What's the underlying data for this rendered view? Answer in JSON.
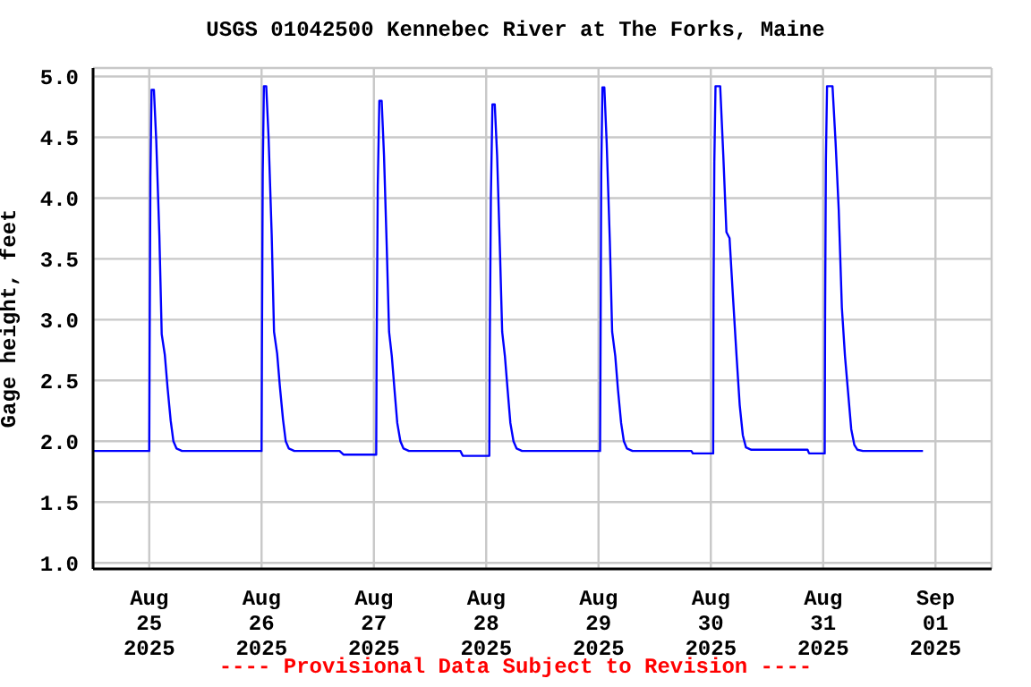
{
  "chart_data": {
    "type": "line",
    "title": "USGS 01042500 Kennebec River at The Forks, Maine",
    "ylabel": "Gage height, feet",
    "annotations": [
      "---- Provisional Data Subject to Revision ----"
    ],
    "color": "#0000ff",
    "grid": true,
    "x": [
      "2025-08-24T12:00",
      "2025-08-25T00:00",
      "2025-08-25T00:05",
      "2025-08-25T00:15",
      "2025-08-25T00:30",
      "2025-08-25T01:00",
      "2025-08-25T01:30",
      "2025-08-25T02:10",
      "2025-08-25T02:40",
      "2025-08-25T03:20",
      "2025-08-25T03:55",
      "2025-08-25T04:35",
      "2025-08-25T05:10",
      "2025-08-25T05:50",
      "2025-08-25T07:00",
      "2025-08-26T00:00",
      "2025-08-26T00:05",
      "2025-08-26T00:15",
      "2025-08-26T00:30",
      "2025-08-26T01:00",
      "2025-08-26T01:30",
      "2025-08-26T02:10",
      "2025-08-26T02:40",
      "2025-08-26T03:20",
      "2025-08-26T03:55",
      "2025-08-26T04:35",
      "2025-08-26T05:10",
      "2025-08-26T05:50",
      "2025-08-26T07:00",
      "2025-08-26T16:40",
      "2025-08-26T17:30",
      "2025-08-27T00:30",
      "2025-08-27T00:35",
      "2025-08-27T00:50",
      "2025-08-27T01:10",
      "2025-08-27T01:40",
      "2025-08-27T02:10",
      "2025-08-27T02:45",
      "2025-08-27T03:15",
      "2025-08-27T03:50",
      "2025-08-27T04:25",
      "2025-08-27T05:00",
      "2025-08-27T05:40",
      "2025-08-27T06:20",
      "2025-08-27T07:30",
      "2025-08-27T18:30",
      "2025-08-27T19:00",
      "2025-08-27T23:50",
      "2025-08-28T00:40",
      "2025-08-28T00:45",
      "2025-08-28T01:00",
      "2025-08-28T01:20",
      "2025-08-28T01:50",
      "2025-08-28T02:20",
      "2025-08-28T02:55",
      "2025-08-28T03:25",
      "2025-08-28T04:00",
      "2025-08-28T04:35",
      "2025-08-28T05:10",
      "2025-08-28T05:50",
      "2025-08-28T06:30",
      "2025-08-28T07:40",
      "2025-08-29T00:20",
      "2025-08-29T00:25",
      "2025-08-29T00:35",
      "2025-08-29T00:50",
      "2025-08-29T01:15",
      "2025-08-29T01:45",
      "2025-08-29T02:25",
      "2025-08-29T02:55",
      "2025-08-29T03:35",
      "2025-08-29T04:10",
      "2025-08-29T04:50",
      "2025-08-29T05:25",
      "2025-08-29T06:05",
      "2025-08-29T07:15",
      "2025-08-29T19:50",
      "2025-08-29T20:10",
      "2025-08-30T00:30",
      "2025-08-30T00:35",
      "2025-08-30T00:45",
      "2025-08-30T01:00",
      "2025-08-30T02:00",
      "2025-08-30T02:40",
      "2025-08-30T03:20",
      "2025-08-30T04:00",
      "2025-08-30T04:40",
      "2025-08-30T05:30",
      "2025-08-30T06:10",
      "2025-08-30T06:50",
      "2025-08-30T07:30",
      "2025-08-30T08:40",
      "2025-08-30T20:40",
      "2025-08-30T21:00",
      "2025-08-31T00:20",
      "2025-08-31T00:25",
      "2025-08-31T00:35",
      "2025-08-31T00:50",
      "2025-08-31T02:00",
      "2025-08-31T02:40",
      "2025-08-31T03:20",
      "2025-08-31T04:00",
      "2025-08-31T04:40",
      "2025-08-31T05:20",
      "2025-08-31T06:00",
      "2025-08-31T06:40",
      "2025-08-31T07:20",
      "2025-08-31T08:30",
      "2025-08-31T21:20"
    ],
    "values": [
      1.92,
      1.92,
      2.76,
      4.17,
      4.89,
      4.89,
      4.47,
      3.69,
      2.88,
      2.71,
      2.44,
      2.17,
      2.0,
      1.94,
      1.92,
      1.92,
      2.76,
      4.2,
      4.92,
      4.92,
      4.5,
      3.7,
      2.9,
      2.72,
      2.45,
      2.18,
      2.0,
      1.94,
      1.92,
      1.92,
      1.89,
      1.89,
      2.7,
      4.1,
      4.8,
      4.8,
      4.35,
      3.6,
      2.9,
      2.7,
      2.42,
      2.15,
      2.0,
      1.94,
      1.92,
      1.92,
      1.88,
      1.88,
      1.88,
      2.69,
      4.0,
      4.77,
      4.77,
      4.35,
      3.6,
      2.9,
      2.7,
      2.42,
      2.15,
      2.0,
      1.94,
      1.92,
      1.92,
      2.6,
      4.2,
      4.91,
      4.91,
      4.45,
      3.65,
      2.9,
      2.7,
      2.42,
      2.15,
      2.0,
      1.94,
      1.92,
      1.92,
      1.9,
      1.9,
      3.2,
      4.3,
      4.92,
      4.92,
      4.35,
      3.72,
      3.67,
      3.23,
      2.7,
      2.3,
      2.05,
      1.95,
      1.93,
      1.93,
      1.9,
      1.9,
      3.0,
      4.3,
      4.92,
      4.92,
      4.45,
      3.9,
      3.1,
      2.7,
      2.4,
      2.1,
      1.97,
      1.93,
      1.92,
      1.92
    ],
    "xlim": [
      "2025-08-24T12:00",
      "2025-09-01T12:00"
    ],
    "xticks": [
      {
        "value": "2025-08-25",
        "label": "Aug 25 2025"
      },
      {
        "value": "2025-08-26",
        "label": "Aug 26 2025"
      },
      {
        "value": "2025-08-27",
        "label": "Aug 27 2025"
      },
      {
        "value": "2025-08-28",
        "label": "Aug 28 2025"
      },
      {
        "value": "2025-08-29",
        "label": "Aug 29 2025"
      },
      {
        "value": "2025-08-30",
        "label": "Aug 30 2025"
      },
      {
        "value": "2025-08-31",
        "label": "Aug 31 2025"
      },
      {
        "value": "2025-09-01",
        "label": "Sep 01 2025"
      }
    ],
    "ylim": [
      0.95,
      5.07
    ],
    "yticks": [
      {
        "value": 1,
        "label": "1.0"
      },
      {
        "value": 1.5,
        "label": "1.5"
      },
      {
        "value": 2,
        "label": "2.0"
      },
      {
        "value": 2.5,
        "label": "2.5"
      },
      {
        "value": 3,
        "label": "3.0"
      },
      {
        "value": 3.5,
        "label": "3.5"
      },
      {
        "value": 4,
        "label": "4.0"
      },
      {
        "value": 4.5,
        "label": "4.5"
      },
      {
        "value": 5,
        "label": "5.0"
      }
    ]
  }
}
